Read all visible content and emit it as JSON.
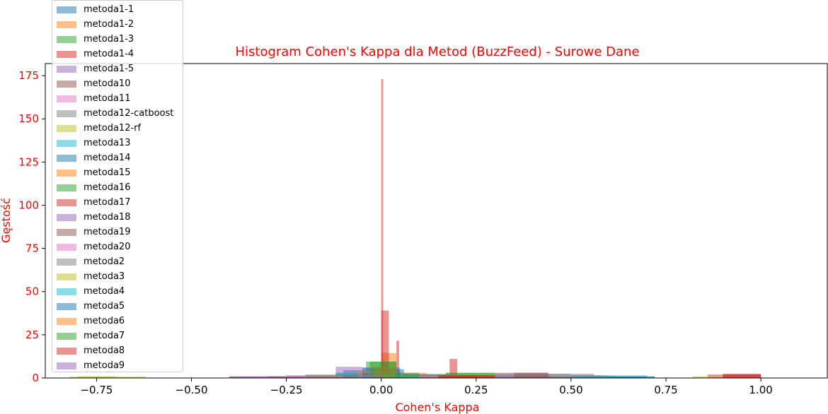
{
  "chart_data": {
    "type": "histogram",
    "title": "Histogram Cohen's Kappa dla Metod (BuzzFeed) - Surowe Dane",
    "xlabel": "Cohen's Kappa",
    "ylabel": "Gęstość",
    "xlim": [
      -0.885,
      1.175
    ],
    "ylim": [
      0,
      182
    ],
    "xticks": [
      -0.75,
      -0.5,
      -0.25,
      0.0,
      0.25,
      0.5,
      0.75,
      1.0
    ],
    "xtick_labels": [
      "−0.75",
      "−0.50",
      "−0.25",
      "0.00",
      "0.25",
      "0.50",
      "0.75",
      "1.00"
    ],
    "yticks": [
      0,
      25,
      50,
      75,
      100,
      125,
      150,
      175
    ],
    "ytick_labels": [
      "0",
      "25",
      "50",
      "75",
      "100",
      "125",
      "150",
      "175"
    ],
    "legend_position": "upper-left",
    "series": [
      {
        "name": "metoda1-1",
        "color": "#1f77b4",
        "bins": [
          [
            -0.1,
            0.0,
            4.5
          ],
          [
            0.0,
            0.06,
            5.0
          ],
          [
            0.06,
            0.25,
            1.5
          ],
          [
            0.35,
            0.55,
            1.0
          ]
        ]
      },
      {
        "name": "metoda1-2",
        "color": "#ff7f0e",
        "bins": [
          [
            -0.08,
            0.0,
            3.0
          ],
          [
            0.0,
            0.04,
            14.5
          ],
          [
            0.04,
            0.12,
            3.0
          ]
        ]
      },
      {
        "name": "metoda1-3",
        "color": "#2ca02c",
        "bins": [
          [
            -0.12,
            -0.04,
            3.0
          ],
          [
            -0.04,
            0.04,
            9.5
          ],
          [
            0.04,
            0.17,
            2.0
          ],
          [
            0.17,
            0.3,
            3.0
          ]
        ]
      },
      {
        "name": "metoda1-4",
        "color": "#d62728",
        "bins": [
          [
            0.0,
            0.005,
            173.0
          ],
          [
            0.04,
            0.047,
            21.5
          ],
          [
            0.18,
            0.2,
            11.0
          ],
          [
            0.15,
            0.3,
            1.5
          ],
          [
            0.86,
            1.0,
            2.0
          ]
        ]
      },
      {
        "name": "metoda1-5",
        "color": "#9467bd",
        "bins": [
          [
            -0.12,
            -0.05,
            6.5
          ],
          [
            -0.05,
            0.03,
            6.0
          ],
          [
            0.03,
            0.1,
            2.5
          ],
          [
            0.1,
            0.2,
            1.0
          ]
        ]
      },
      {
        "name": "metoda10",
        "color": "#8c564b",
        "bins": [
          [
            -0.4,
            -0.2,
            1.0
          ],
          [
            -0.2,
            0.0,
            1.5
          ],
          [
            0.3,
            0.44,
            3.0
          ],
          [
            0.5,
            0.7,
            1.0
          ]
        ]
      },
      {
        "name": "metoda11",
        "color": "#e377c2",
        "bins": [
          [
            -0.25,
            -0.1,
            1.5
          ],
          [
            0.05,
            0.2,
            2.5
          ],
          [
            0.4,
            0.55,
            1.0
          ]
        ]
      },
      {
        "name": "metoda12-catboost",
        "color": "#7f7f7f",
        "bins": [
          [
            -0.2,
            0.0,
            1.5
          ],
          [
            0.1,
            0.2,
            2.0
          ],
          [
            0.3,
            0.5,
            2.5
          ],
          [
            0.5,
            0.6,
            1.5
          ]
        ]
      },
      {
        "name": "metoda12-rf",
        "color": "#bcbd22",
        "bins": [
          [
            -0.82,
            -0.62,
            0.8
          ],
          [
            0.82,
            0.92,
            1.0
          ]
        ]
      },
      {
        "name": "metoda13",
        "color": "#17becf",
        "bins": [
          [
            -0.12,
            -0.02,
            3.0
          ],
          [
            0.5,
            0.7,
            1.5
          ]
        ]
      },
      {
        "name": "metoda14",
        "color": "#1f77b4",
        "bins": [
          [
            -0.05,
            0.05,
            6.0
          ],
          [
            0.52,
            0.72,
            1.0
          ]
        ]
      },
      {
        "name": "metoda15",
        "color": "#ff7f0e",
        "bins": [
          [
            -0.06,
            0.04,
            4.0
          ],
          [
            0.16,
            0.3,
            1.5
          ]
        ]
      },
      {
        "name": "metoda16",
        "color": "#2ca02c",
        "bins": [
          [
            -0.2,
            -0.06,
            2.0
          ],
          [
            0.06,
            0.17,
            2.0
          ],
          [
            0.17,
            0.3,
            3.0
          ]
        ]
      },
      {
        "name": "metoda17",
        "color": "#d62728",
        "bins": [
          [
            0.0,
            0.02,
            39.0
          ],
          [
            0.16,
            0.3,
            1.5
          ],
          [
            0.9,
            1.0,
            2.5
          ]
        ]
      },
      {
        "name": "metoda18",
        "color": "#9467bd",
        "bins": [
          [
            -0.4,
            -0.2,
            0.8
          ],
          [
            0.3,
            0.45,
            1.5
          ],
          [
            0.5,
            0.58,
            1.5
          ]
        ]
      },
      {
        "name": "metoda19",
        "color": "#8c564b",
        "bins": [
          [
            -0.3,
            -0.1,
            1.0
          ],
          [
            0.35,
            0.44,
            3.0
          ],
          [
            0.55,
            0.62,
            1.0
          ]
        ]
      },
      {
        "name": "metoda20",
        "color": "#e377c2",
        "bins": [
          [
            -0.25,
            -0.1,
            1.5
          ],
          [
            0.02,
            0.15,
            1.5
          ]
        ]
      },
      {
        "name": "metoda2",
        "color": "#7f7f7f",
        "bins": [
          [
            0.44,
            0.5,
            2.5
          ],
          [
            0.5,
            0.56,
            2.5
          ]
        ]
      },
      {
        "name": "metoda3",
        "color": "#bcbd22",
        "bins": [
          [
            -0.8,
            -0.7,
            1.0
          ],
          [
            -0.05,
            0.05,
            1.5
          ]
        ]
      },
      {
        "name": "metoda4",
        "color": "#17becf",
        "bins": [
          [
            0.0,
            0.1,
            2.0
          ],
          [
            0.5,
            0.7,
            1.0
          ]
        ]
      },
      {
        "name": "metoda5",
        "color": "#1f77b4",
        "bins": [
          [
            -0.05,
            0.05,
            3.0
          ],
          [
            0.6,
            0.72,
            0.8
          ]
        ]
      },
      {
        "name": "metoda6",
        "color": "#ff7f0e",
        "bins": [
          [
            -0.02,
            0.04,
            6.5
          ]
        ]
      },
      {
        "name": "metoda7",
        "color": "#2ca02c",
        "bins": [
          [
            -0.03,
            0.04,
            9.5
          ],
          [
            0.04,
            0.1,
            3.0
          ]
        ]
      },
      {
        "name": "metoda8",
        "color": "#d62728",
        "bins": [
          [
            0.15,
            0.3,
            1.5
          ],
          [
            0.9,
            1.0,
            2.0
          ]
        ]
      },
      {
        "name": "metoda9",
        "color": "#9467bd",
        "bins": [
          [
            -0.4,
            -0.2,
            0.8
          ],
          [
            -0.1,
            0.0,
            2.0
          ]
        ]
      }
    ]
  }
}
